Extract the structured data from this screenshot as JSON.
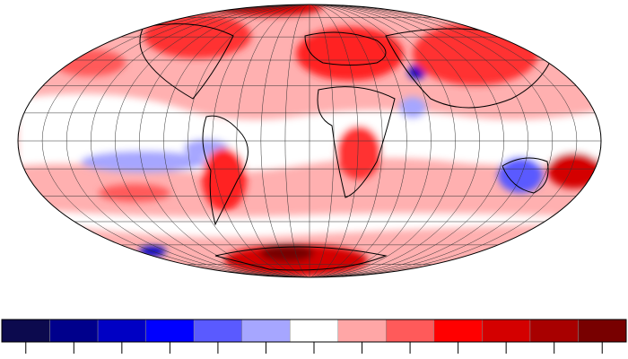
{
  "colorbar": {
    "colors": [
      "#0c0a4e",
      "#00008c",
      "#0000c4",
      "#0000ff",
      "#5a5aff",
      "#a6a6ff",
      "#ffffff",
      "#ffa6a6",
      "#ff5a5a",
      "#ff0000",
      "#d40000",
      "#a80000",
      "#780000"
    ]
  }
}
